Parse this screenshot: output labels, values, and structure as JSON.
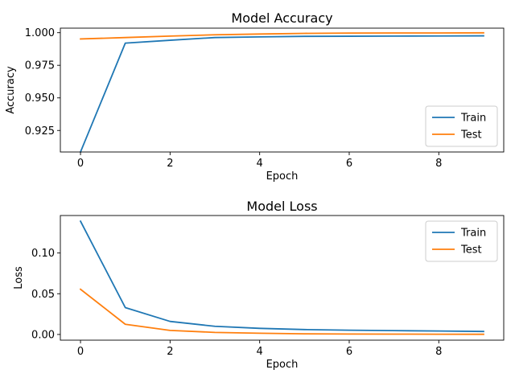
{
  "chart_data": [
    {
      "type": "line",
      "title": "Model Accuracy",
      "xlabel": "Epoch",
      "ylabel": "Accuracy",
      "x": [
        0,
        1,
        2,
        3,
        4,
        5,
        6,
        7,
        8,
        9
      ],
      "xlim": [
        -0.45,
        9.45
      ],
      "ylim": [
        0.9085,
        1.0035
      ],
      "xticks": [
        0,
        2,
        4,
        6,
        8
      ],
      "yticks": [
        0.925,
        0.95,
        0.975,
        1.0
      ],
      "ytick_labels": [
        "0.925",
        "0.950",
        "0.975",
        "1.000"
      ],
      "legend_position": "bottom-right",
      "grid": false,
      "series": [
        {
          "name": "Train",
          "color": "#1f77b4",
          "values": [
            0.9085,
            0.992,
            0.9942,
            0.9963,
            0.9968,
            0.9972,
            0.9973,
            0.9974,
            0.9975,
            0.9976
          ]
        },
        {
          "name": "Test",
          "color": "#ff7f0e",
          "values": [
            0.9952,
            0.9963,
            0.9974,
            0.9984,
            0.999,
            0.9995,
            0.9997,
            0.9998,
            0.9998,
            0.9999
          ]
        }
      ]
    },
    {
      "type": "line",
      "title": "Model Loss",
      "xlabel": "Epoch",
      "ylabel": "Loss",
      "x": [
        0,
        1,
        2,
        3,
        4,
        5,
        6,
        7,
        8,
        9
      ],
      "xlim": [
        -0.45,
        9.45
      ],
      "ylim": [
        -0.007,
        0.146
      ],
      "xticks": [
        0,
        2,
        4,
        6,
        8
      ],
      "yticks": [
        0.0,
        0.05,
        0.1
      ],
      "ytick_labels": [
        "0.00",
        "0.05",
        "0.10"
      ],
      "legend_position": "top-right",
      "grid": false,
      "series": [
        {
          "name": "Train",
          "color": "#1f77b4",
          "values": [
            0.139,
            0.033,
            0.016,
            0.01,
            0.0075,
            0.006,
            0.0052,
            0.0047,
            0.0042,
            0.0037
          ]
        },
        {
          "name": "Test",
          "color": "#ff7f0e",
          "values": [
            0.0555,
            0.0125,
            0.005,
            0.0025,
            0.0015,
            0.0008,
            0.0005,
            0.0004,
            0.0003,
            0.0002
          ]
        }
      ]
    }
  ]
}
